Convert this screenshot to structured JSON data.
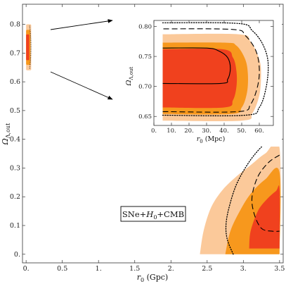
{
  "chart_data": [
    {
      "type": "contour",
      "name": "main",
      "xlabel_var": "r",
      "xlabel_sub": "0",
      "xlabel_unit": " (Gpc)",
      "ylabel_var": "Ω",
      "ylabel_sub": "Λ,out",
      "xlim": [
        -0.05,
        3.55
      ],
      "ylim": [
        -0.03,
        0.87
      ],
      "xticks": [
        0.0,
        0.5,
        1.0,
        1.5,
        2.0,
        2.5,
        3.0,
        3.5
      ],
      "xtick_labels": [
        "0.",
        "0.5",
        "1.",
        "1.5",
        "2.",
        "2.5",
        "3.",
        "3.5"
      ],
      "yticks": [
        0.0,
        0.1,
        0.2,
        0.3,
        0.4,
        0.5,
        0.6,
        0.7,
        0.8
      ],
      "ytick_labels": [
        "0.",
        "0.1",
        "0.2",
        "0.3",
        "0.4",
        "0.5",
        "0.6",
        "0.7",
        "0.8"
      ],
      "annotation": {
        "parts": [
          "SNe+",
          "H",
          "0",
          "+CMB"
        ],
        "x": 1.55,
        "y": 0.15
      },
      "regions": [
        {
          "level": "outer",
          "color": "#fbc99a",
          "points": [
            [
              2.4,
              0.0
            ],
            [
              2.45,
              0.08
            ],
            [
              2.55,
              0.16
            ],
            [
              2.7,
              0.22
            ],
            [
              2.9,
              0.27
            ],
            [
              3.1,
              0.31
            ],
            [
              3.3,
              0.35
            ],
            [
              3.5,
              0.37
            ],
            [
              3.5,
              0.0
            ]
          ]
        },
        {
          "level": "middle",
          "color": "#f7981d",
          "points": [
            [
              2.75,
              0.0
            ],
            [
              2.82,
              0.08
            ],
            [
              2.95,
              0.15
            ],
            [
              3.1,
              0.21
            ],
            [
              3.3,
              0.26
            ],
            [
              3.5,
              0.285
            ],
            [
              3.5,
              0.0
            ]
          ]
        },
        {
          "level": "inner",
          "color": "#f0411e",
          "points": [
            [
              3.08,
              0.02
            ],
            [
              3.1,
              0.08
            ],
            [
              3.2,
              0.15
            ],
            [
              3.32,
              0.19
            ],
            [
              3.45,
              0.22
            ],
            [
              3.5,
              0.225
            ],
            [
              3.5,
              0.02
            ]
          ]
        }
      ],
      "lines": [
        {
          "style": "dotted",
          "points": [
            [
              2.86,
              0.0
            ],
            [
              2.78,
              0.05
            ],
            [
              2.76,
              0.1
            ],
            [
              2.8,
              0.16
            ],
            [
              2.9,
              0.24
            ],
            [
              3.05,
              0.31
            ],
            [
              3.2,
              0.36
            ],
            [
              3.35,
              0.395
            ],
            [
              3.5,
              0.41
            ]
          ]
        },
        {
          "style": "dashed",
          "points": [
            [
              3.5,
              0.345
            ],
            [
              3.35,
              0.32
            ],
            [
              3.2,
              0.27
            ],
            [
              3.12,
              0.2
            ],
            [
              3.15,
              0.14
            ],
            [
              3.25,
              0.09
            ],
            [
              3.4,
              0.08
            ],
            [
              3.5,
              0.08
            ]
          ]
        }
      ],
      "small_region": {
        "x": [
          0.0,
          0.07
        ],
        "y": [
          0.64,
          0.8
        ]
      }
    },
    {
      "type": "contour",
      "name": "inset",
      "xlabel_var": "r",
      "xlabel_sub": "0",
      "xlabel_unit": " (Mpc)",
      "ylabel_var": "Ω",
      "ylabel_sub": "Λ,out",
      "xlim": [
        0,
        68
      ],
      "ylim": [
        0.635,
        0.81
      ],
      "xticks": [
        0,
        10,
        20,
        30,
        40,
        50,
        60
      ],
      "xtick_labels": [
        "0.",
        "10.",
        "20.",
        "30.",
        "40.",
        "50.",
        "60."
      ],
      "yticks": [
        0.65,
        0.7,
        0.75,
        0.8
      ],
      "ytick_labels": [
        "0.65",
        "0.70",
        "0.75",
        "0.80"
      ],
      "regions": [
        {
          "level": "outer",
          "color": "#fbc99a",
          "points": [
            [
              5,
              0.643
            ],
            [
              50,
              0.643
            ],
            [
              56,
              0.655
            ],
            [
              60,
              0.685
            ],
            [
              61,
              0.72
            ],
            [
              60,
              0.745
            ],
            [
              55,
              0.775
            ],
            [
              48,
              0.787
            ],
            [
              5,
              0.787
            ]
          ]
        },
        {
          "level": "middle",
          "color": "#f7981d",
          "points": [
            [
              5,
              0.654
            ],
            [
              44,
              0.654
            ],
            [
              50,
              0.665
            ],
            [
              53,
              0.69
            ],
            [
              53.5,
              0.72
            ],
            [
              52,
              0.745
            ],
            [
              47,
              0.768
            ],
            [
              40,
              0.773
            ],
            [
              5,
              0.773
            ]
          ]
        },
        {
          "level": "inner",
          "color": "#f0411e",
          "points": [
            [
              5,
              0.665
            ],
            [
              40,
              0.665
            ],
            [
              45,
              0.677
            ],
            [
              47,
              0.7
            ],
            [
              47,
              0.725
            ],
            [
              45,
              0.748
            ],
            [
              39,
              0.762
            ],
            [
              5,
              0.762
            ]
          ]
        }
      ],
      "lines": [
        {
          "style": "solid",
          "points": [
            [
              5,
              0.705
            ],
            [
              38,
              0.705
            ],
            [
              42,
              0.712
            ],
            [
              43.5,
              0.73
            ],
            [
              42,
              0.748
            ],
            [
              37,
              0.759
            ],
            [
              30,
              0.764
            ],
            [
              5,
              0.764
            ]
          ]
        },
        {
          "style": "dashed",
          "points": [
            [
              5,
              0.658
            ],
            [
              48,
              0.658
            ],
            [
              55,
              0.67
            ],
            [
              59,
              0.7
            ],
            [
              60,
              0.73
            ],
            [
              58,
              0.76
            ],
            [
              52,
              0.785
            ],
            [
              45,
              0.795
            ],
            [
              5,
              0.796
            ]
          ]
        },
        {
          "style": "dotted",
          "points": [
            [
              5,
              0.652
            ],
            [
              52,
              0.652
            ],
            [
              60,
              0.665
            ],
            [
              64,
              0.7
            ],
            [
              65,
              0.74
            ],
            [
              62,
              0.77
            ],
            [
              56,
              0.793
            ],
            [
              48,
              0.805
            ],
            [
              5,
              0.806
            ]
          ]
        }
      ]
    }
  ]
}
